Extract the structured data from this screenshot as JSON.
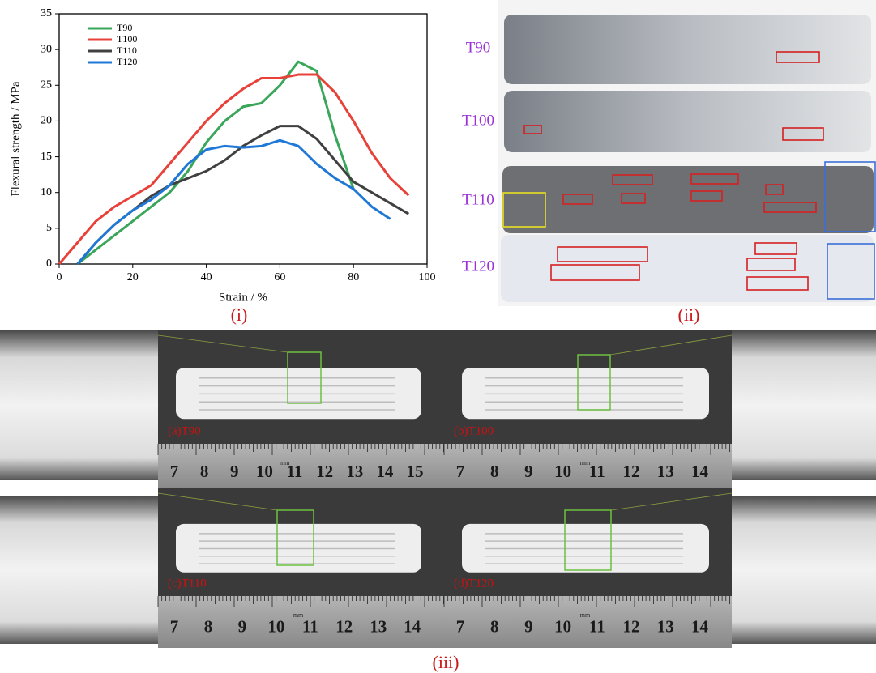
{
  "chart_data": {
    "type": "line",
    "xlabel": "Strain / %",
    "ylabel": "Flexural strength / MPa",
    "x": [
      0,
      5,
      10,
      15,
      20,
      25,
      30,
      35,
      40,
      45,
      50,
      55,
      60,
      65,
      70,
      75,
      80,
      85,
      90,
      95
    ],
    "series": [
      {
        "name": "T90",
        "color": "#3aa65a",
        "values": [
          null,
          0,
          2,
          4,
          6,
          8,
          10,
          13,
          17,
          20,
          22,
          22.5,
          25,
          28.3,
          27,
          18,
          10.5,
          null,
          null,
          null
        ]
      },
      {
        "name": "T100",
        "color": "#e8413a",
        "values": [
          0,
          3,
          6,
          8,
          9.5,
          11,
          14,
          17,
          20,
          22.5,
          24.5,
          26,
          26,
          26.5,
          26.5,
          24,
          20,
          15.5,
          12,
          9.6
        ]
      },
      {
        "name": "T110",
        "color": "#404040",
        "values": [
          null,
          0,
          3,
          5.5,
          7.5,
          9.5,
          11,
          12,
          13,
          14.5,
          16.5,
          18,
          19.3,
          19.3,
          17.5,
          14.5,
          11.5,
          10,
          8.5,
          7
        ]
      },
      {
        "name": "T120",
        "color": "#1f78d6",
        "values": [
          null,
          0,
          3,
          5.5,
          7.5,
          9,
          11,
          14,
          16,
          16.5,
          16.3,
          16.5,
          17.3,
          16.5,
          14,
          12,
          10.5,
          8,
          6.3,
          null
        ]
      }
    ],
    "xlim": [
      0,
      100
    ],
    "xticks": [
      0,
      20,
      40,
      60,
      80,
      100
    ],
    "ylim": [
      0,
      35
    ],
    "yticks": [
      0,
      5,
      10,
      15,
      20,
      25,
      30,
      35
    ],
    "legend": "upper-left"
  },
  "panel_labels": [
    "(i)",
    "(ii)",
    "(iii)"
  ],
  "samples": [
    "T90",
    "T100",
    "T110",
    "T120"
  ],
  "photos": [
    {
      "label": "(a)T90",
      "unit": "mm",
      "ruler": [
        "7",
        "8",
        "9",
        "10",
        "11",
        "12",
        "13",
        "14",
        "15"
      ]
    },
    {
      "label": "(b)T100",
      "unit": "mm",
      "ruler": [
        "7",
        "8",
        "9",
        "10",
        "11",
        "12",
        "13",
        "14"
      ]
    },
    {
      "label": "(c)T110",
      "unit": "mm",
      "ruler": [
        "7",
        "8",
        "9",
        "10",
        "11",
        "12",
        "13",
        "14"
      ]
    },
    {
      "label": "(d)T120",
      "unit": "mm",
      "ruler": [
        "7",
        "8",
        "9",
        "10",
        "11",
        "12",
        "13",
        "14"
      ]
    }
  ]
}
